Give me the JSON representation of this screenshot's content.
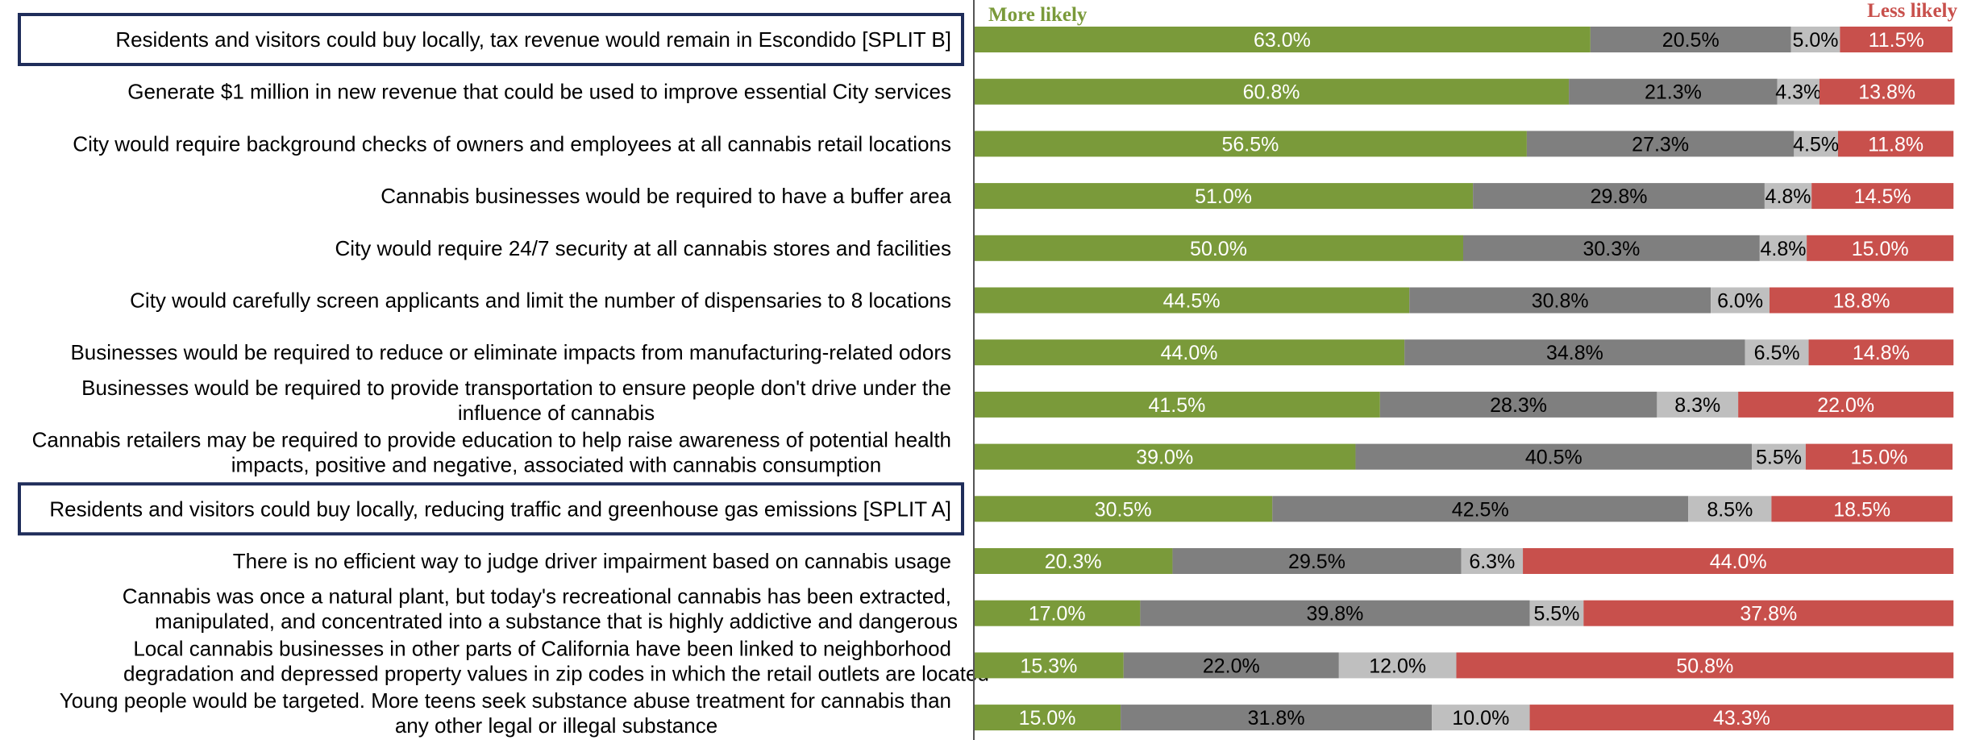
{
  "chart_data": {
    "type": "bar",
    "orientation": "horizontal",
    "stacked": true,
    "legend": {
      "left_label": "More likely",
      "right_label": "Less likely",
      "placement": "top"
    },
    "xlim": [
      0,
      100
    ],
    "grid": false,
    "colors": [
      "#7a9a3a",
      "#7f7f7f",
      "#bfbfbf",
      "#c8504c"
    ],
    "categories": [
      [
        "Residents and visitors could buy locally, tax revenue would remain in Escondido [SPLIT B]"
      ],
      [
        "Generate $1 million in new revenue that could be used to improve essential City services"
      ],
      [
        "City would require background checks of owners and employees at all cannabis retail locations"
      ],
      [
        "Cannabis businesses would be required to have a buffer area"
      ],
      [
        "City would require 24/7 security at all cannabis stores and facilities"
      ],
      [
        "City would carefully screen applicants and limit the number of dispensaries to 8 locations"
      ],
      [
        "Businesses would be required to reduce or eliminate impacts from manufacturing-related odors"
      ],
      [
        "Businesses would be required to provide transportation to ensure people don't drive under the",
        "influence of cannabis"
      ],
      [
        "Cannabis retailers may be required to provide education to help raise awareness of potential health",
        "impacts, positive and negative, associated with cannabis consumption"
      ],
      [
        "Residents and visitors could buy locally, reducing traffic and greenhouse gas emissions [SPLIT A]"
      ],
      [
        "There is no efficient way to judge driver impairment based on cannabis usage"
      ],
      [
        "Cannabis was once a natural plant, but today's recreational cannabis has been extracted,",
        "manipulated, and concentrated into a substance that is highly addictive and dangerous"
      ],
      [
        "Local cannabis businesses in other parts of California have been linked to neighborhood",
        "degradation and depressed property values in zip codes in which the retail outlets are located"
      ],
      [
        "Young people would be targeted. More teens seek substance abuse treatment for cannabis than",
        "any other legal or illegal substance"
      ]
    ],
    "highlighted": [
      0,
      9
    ],
    "series": [
      {
        "values": [
          63.0,
          60.8,
          56.5,
          51.0,
          50.0,
          44.5,
          44.0,
          41.5,
          39.0,
          30.5,
          20.3,
          17.0,
          15.3,
          15.0
        ]
      },
      {
        "values": [
          20.5,
          21.3,
          27.3,
          29.8,
          30.3,
          30.8,
          34.8,
          28.3,
          40.5,
          42.5,
          29.5,
          39.8,
          22.0,
          31.8
        ]
      },
      {
        "values": [
          5.0,
          4.3,
          4.5,
          4.8,
          4.8,
          6.0,
          6.5,
          8.3,
          5.5,
          8.5,
          6.3,
          5.5,
          12.0,
          10.0
        ]
      },
      {
        "values": [
          11.5,
          13.8,
          11.8,
          14.5,
          15.0,
          18.8,
          14.8,
          22.0,
          15.0,
          18.5,
          44.0,
          37.8,
          50.8,
          43.3
        ]
      }
    ],
    "value_labels": [
      [
        "63.0%",
        "20.5%",
        "5.0%",
        "11.5%"
      ],
      [
        "60.8%",
        "21.3%",
        "4.3%",
        "13.8%"
      ],
      [
        "56.5%",
        "27.3%",
        "4.5%",
        "11.8%"
      ],
      [
        "51.0%",
        "29.8%",
        "4.8%",
        "14.5%"
      ],
      [
        "50.0%",
        "30.3%",
        "4.8%",
        "15.0%"
      ],
      [
        "44.5%",
        "30.8%",
        "6.0%",
        "18.8%"
      ],
      [
        "44.0%",
        "34.8%",
        "6.5%",
        "14.8%"
      ],
      [
        "41.5%",
        "28.3%",
        "8.3%",
        "22.0%"
      ],
      [
        "39.0%",
        "40.5%",
        "5.5%",
        "15.0%"
      ],
      [
        "30.5%",
        "42.5%",
        "8.5%",
        "18.5%"
      ],
      [
        "20.3%",
        "29.5%",
        "6.3%",
        "44.0%"
      ],
      [
        "17.0%",
        "39.8%",
        "5.5%",
        "37.8%"
      ],
      [
        "15.3%",
        "22.0%",
        "12.0%",
        "50.8%"
      ],
      [
        "15.0%",
        "31.8%",
        "10.0%",
        "43.3%"
      ]
    ]
  }
}
